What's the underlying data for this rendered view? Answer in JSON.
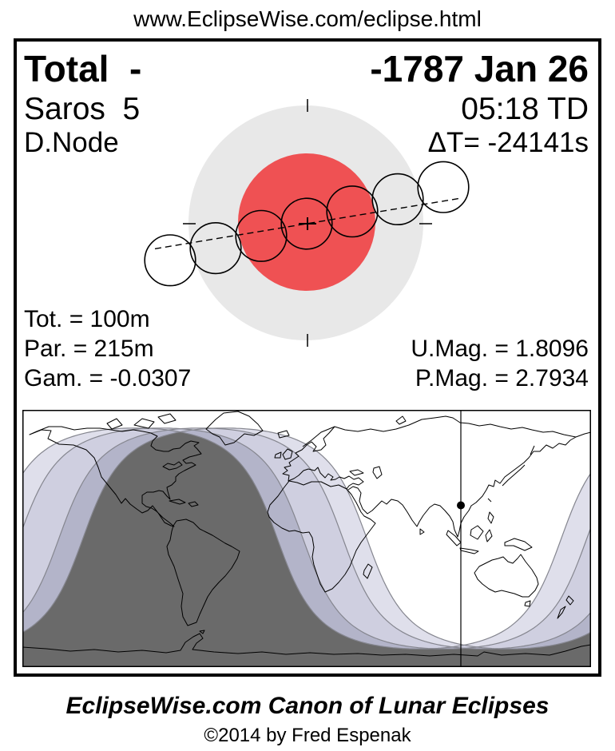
{
  "header": {
    "url": "www.EclipseWise.com/eclipse.html"
  },
  "info": {
    "type_label": "Total  -",
    "date": "-1787 Jan 26",
    "saros_label": "Saros  5",
    "time": "05:18 TD",
    "node_label": "D.Node",
    "delta_t": "ΔT= -24141s",
    "totality": "Tot. = 100m",
    "partial": "Par. = 215m",
    "gamma": "Gam. = -0.0307",
    "umbral_mag": "U.Mag. = 1.8096",
    "penumbral_mag": "P.Mag. = 2.7934"
  },
  "footer": {
    "title": "EclipseWise.com Canon of Lunar Eclipses",
    "copyright": "©2014 by Fred Espenak"
  },
  "colors": {
    "ink": "#000000",
    "penumbra": "#e8e8e8",
    "umbra": "#ef5153",
    "map_bands": [
      "#dfdfeb",
      "#cfcfe0",
      "#b3b4c9",
      "#6a6a6a"
    ],
    "map_curve_line": "#85868f",
    "map_no_eclipse": "#ffffff"
  },
  "chart_data": {
    "type": "eclipse-diagram",
    "title": "Canon plate: Total lunar eclipse of -1787 Jan 26",
    "eclipse_type": "Total",
    "saros": 5,
    "node": "Descending (D.Node)",
    "date": "-1787 Jan 26",
    "greatest_eclipse_time_td": "05:18 TD",
    "delta_t_seconds": -24141,
    "totality_duration_minutes": 100,
    "partial_duration_minutes": 215,
    "gamma": -0.0307,
    "umbral_magnitude": 1.8096,
    "penumbral_magnitude": 2.7934,
    "diagram_elements": {
      "penumbra_shadow": "large light-gray circle",
      "umbra_shadow": "red inner circle",
      "moon_positions": 7,
      "moon_path": "dashed line sloping up left-to-right, crossing shadow axis at center cross"
    },
    "map_elements": {
      "projection": "equirectangular world map",
      "zones": [
        "eclipse not visible (white)",
        "moon rises/sets during penumbral phase",
        "moon rises/sets during partial phase",
        "moon rises/sets during total phase",
        "entire eclipse visible (dark gray)"
      ],
      "subsolar_meridian_line": true,
      "subsolar_point_dot": true
    }
  }
}
